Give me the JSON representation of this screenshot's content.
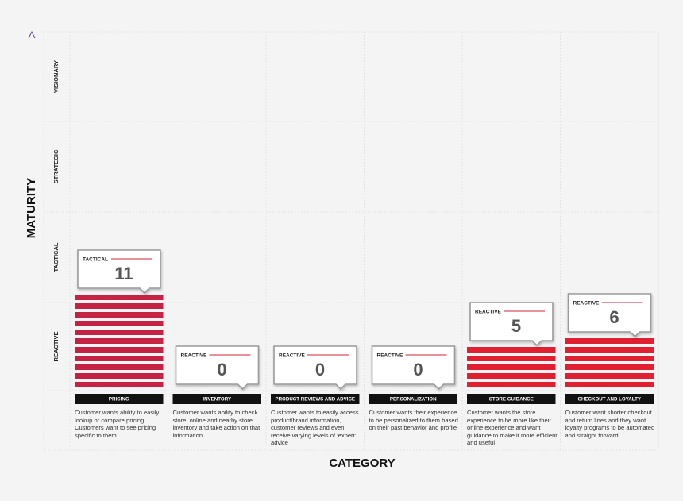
{
  "chart_data": {
    "type": "bar",
    "y_axis_title": "MATURITY",
    "x_axis_title": "CATEGORY",
    "maturity_levels": [
      "REACTIVE",
      "TACTICAL",
      "STRATEGIC",
      "VISIONARY"
    ],
    "categories": [
      "PRICING",
      "INVENTORY",
      "PRODUCT REVIEWS AND ADVICE",
      "PERSONALIZATION",
      "STORE GUIDANCE",
      "CHECKOUT AND LOYALTY"
    ],
    "values": [
      11,
      0,
      0,
      0,
      5,
      6
    ],
    "levels": [
      "TACTICAL",
      "REACTIVE",
      "REACTIVE",
      "REACTIVE",
      "REACTIVE",
      "REACTIVE"
    ],
    "colors": [
      "#c62244",
      "#e01f30",
      "#e01f30",
      "#e01f30",
      "#e01f30",
      "#e01f30"
    ],
    "descriptions": [
      "Customer wants ability to easily lookup or compare pricing. Customers want to see pricing specific to them",
      "Customer wants ability to check store, online and nearby store inventory and take action on that information",
      "Customer wants to easily access product/brand information, customer reviews and even receive varying levels of 'expert' advice",
      "Customer wants their experience to be personalized to them based on their past behavior and profile",
      "Customer wants the store experience to be more like their online experience and want guidance to make it more efficient and useful",
      "Customer want shorter checkout and return lines and they want loyalty programs to be automated and straight forward"
    ]
  }
}
